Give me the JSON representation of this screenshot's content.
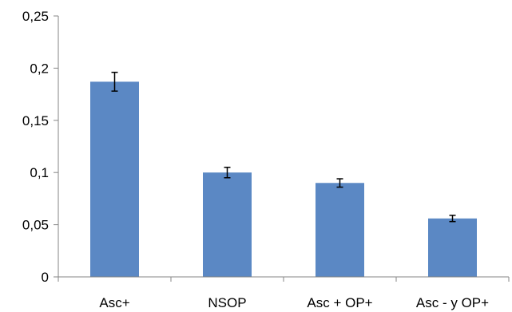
{
  "chart_data": {
    "type": "bar",
    "title": "",
    "xlabel": "",
    "ylabel": "",
    "categories": [
      "Asc+",
      "NSOP",
      "Asc + OP+",
      "Asc - y OP+"
    ],
    "values": [
      0.187,
      0.1,
      0.09,
      0.056
    ],
    "error_low": [
      0.178,
      0.095,
      0.086,
      0.053
    ],
    "error_high": [
      0.196,
      0.105,
      0.094,
      0.059
    ],
    "ylim": [
      0,
      0.25
    ],
    "y_ticks": [
      0,
      0.05,
      0.1,
      0.15,
      0.2,
      0.25
    ],
    "y_tick_labels": [
      "0",
      "0,05",
      "0,1",
      "0,15",
      "0,2",
      "0,25"
    ],
    "grid": false,
    "legend": "none",
    "colors": {
      "bar": "#5b88c4",
      "axis": "#868686",
      "error_bar": "#000000"
    }
  }
}
